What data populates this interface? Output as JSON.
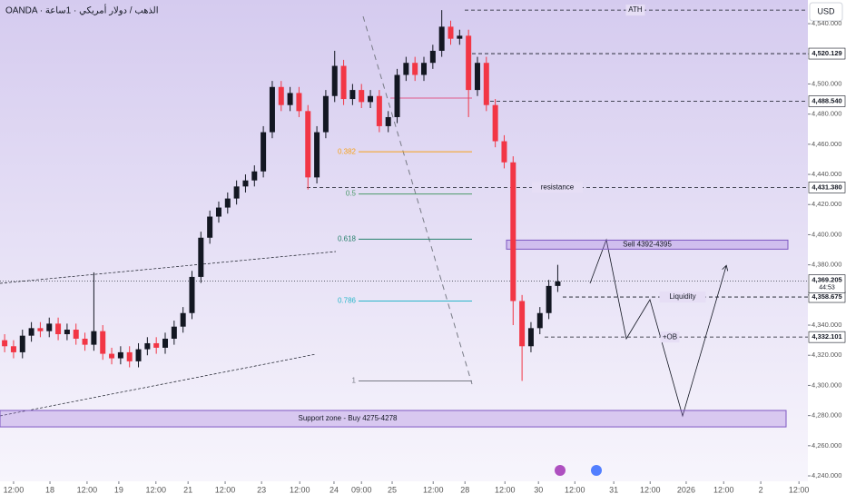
{
  "chart_data": {
    "type": "candlestick",
    "title": "OANDA · الذهب / دولار أمريكي · 1ساعة",
    "currency": "USD",
    "up_color": "#131722",
    "down_color": "#f23645",
    "x": [
      -0.25,
      0,
      0.25,
      0.5,
      0.75,
      1,
      1.25,
      1.5,
      1.75,
      2,
      2.25,
      2.5,
      2.75,
      3,
      3.25,
      3.5,
      3.75,
      4,
      4.25,
      4.5,
      4.75,
      5,
      5.25,
      5.5,
      5.75,
      6,
      6.25,
      6.5,
      6.75,
      7,
      7.25,
      7.5,
      7.75,
      8,
      8.25,
      8.5,
      8.75,
      9,
      9.25,
      9.5,
      9.75,
      10,
      10.25,
      10.5,
      10.75,
      11,
      11.25,
      11.5,
      11.75,
      12,
      12.25,
      12.5,
      12.75,
      13,
      13.25,
      13.5,
      13.75,
      14,
      14.25,
      14.5,
      14.75,
      15,
      15.25
    ],
    "open": [
      4330,
      4326,
      4322,
      4333,
      4338,
      4336,
      4341,
      4334,
      4337,
      4331,
      4327,
      4336,
      4321,
      4318,
      4322,
      4316,
      4324,
      4328,
      4325,
      4331,
      4339,
      4348,
      4372,
      4398,
      4412,
      4418,
      4424,
      4432,
      4436,
      4442,
      4468,
      4498,
      4486,
      4494,
      4482,
      4438,
      4468,
      4492,
      4512,
      4490,
      4496,
      4488,
      4492,
      4472,
      4478,
      4506,
      4514,
      4506,
      4514,
      4522,
      4538,
      4530,
      4532,
      4496,
      4514,
      4486,
      4462,
      4448,
      4356,
      4326,
      4338,
      4348,
      4366
    ],
    "high": [
      4334,
      4330,
      4337,
      4342,
      4342,
      4345,
      4345,
      4341,
      4341,
      4335,
      4375,
      4340,
      4325,
      4326,
      4326,
      4328,
      4332,
      4332,
      4335,
      4343,
      4352,
      4376,
      4402,
      4416,
      4422,
      4428,
      4436,
      4440,
      4446,
      4472,
      4502,
      4502,
      4498,
      4498,
      4486,
      4472,
      4496,
      4522,
      4516,
      4500,
      4500,
      4496,
      4496,
      4482,
      4510,
      4518,
      4518,
      4518,
      4526,
      4549,
      4542,
      4536,
      4536,
      4518,
      4518,
      4490,
      4466,
      4452,
      4360,
      4342,
      4352,
      4370,
      4380
    ],
    "low": [
      4322,
      4318,
      4318,
      4329,
      4332,
      4332,
      4330,
      4330,
      4327,
      4323,
      4323,
      4317,
      4314,
      4314,
      4312,
      4312,
      4320,
      4321,
      4321,
      4327,
      4335,
      4344,
      4368,
      4394,
      4408,
      4414,
      4420,
      4428,
      4432,
      4438,
      4464,
      4482,
      4482,
      4478,
      4430,
      4434,
      4464,
      4488,
      4486,
      4486,
      4484,
      4484,
      4468,
      4468,
      4474,
      4502,
      4502,
      4502,
      4510,
      4518,
      4526,
      4526,
      4478,
      4492,
      4482,
      4458,
      4444,
      4340,
      4303,
      4322,
      4334,
      4344,
      4362
    ],
    "close": [
      4326,
      4322,
      4333,
      4338,
      4336,
      4341,
      4334,
      4337,
      4331,
      4327,
      4336,
      4321,
      4318,
      4322,
      4316,
      4324,
      4328,
      4325,
      4331,
      4339,
      4348,
      4372,
      4398,
      4412,
      4418,
      4424,
      4432,
      4436,
      4442,
      4468,
      4498,
      4486,
      4494,
      4482,
      4438,
      4468,
      4492,
      4512,
      4490,
      4496,
      4488,
      4492,
      4472,
      4478,
      4506,
      4514,
      4506,
      4514,
      4522,
      4538,
      4530,
      4532,
      4496,
      4514,
      4486,
      4462,
      4448,
      4356,
      4326,
      4338,
      4348,
      4366,
      4369
    ],
    "xlim": [
      -0.38,
      22.26
    ],
    "xticks": [
      {
        "value": 0,
        "label": "12:00"
      },
      {
        "value": 1.02,
        "label": "18"
      },
      {
        "value": 2.06,
        "label": "12:00"
      },
      {
        "value": 2.95,
        "label": "19"
      },
      {
        "value": 3.99,
        "label": "12:00"
      },
      {
        "value": 4.89,
        "label": "21"
      },
      {
        "value": 5.93,
        "label": "12:00"
      },
      {
        "value": 6.95,
        "label": "23"
      },
      {
        "value": 8.02,
        "label": "12:00"
      },
      {
        "value": 8.98,
        "label": "24"
      },
      {
        "value": 9.75,
        "label": "09:00"
      },
      {
        "value": 10.61,
        "label": "25"
      },
      {
        "value": 11.76,
        "label": "12:00"
      },
      {
        "value": 12.65,
        "label": "28"
      },
      {
        "value": 13.77,
        "label": "12:00"
      },
      {
        "value": 14.71,
        "label": "30"
      },
      {
        "value": 15.73,
        "label": "12:00"
      },
      {
        "value": 16.82,
        "label": "31"
      },
      {
        "value": 17.84,
        "label": "12:00"
      },
      {
        "value": 18.85,
        "label": "2026"
      },
      {
        "value": 19.9,
        "label": "12:00"
      },
      {
        "value": 20.94,
        "label": "2"
      },
      {
        "value": 22.01,
        "label": "12:00"
      }
    ],
    "ylim": [
      4236.4,
      4555.7
    ],
    "yticks": [
      {
        "value": 4240,
        "label": "4,240.000"
      },
      {
        "value": 4260,
        "label": "4,260.000"
      },
      {
        "value": 4280,
        "label": "4,280.000"
      },
      {
        "value": 4300,
        "label": "4,300.000"
      },
      {
        "value": 4320,
        "label": "4,320.000"
      },
      {
        "value": 4340,
        "label": "4,340.000"
      },
      {
        "value": 4360,
        "label": "4,360.000"
      },
      {
        "value": 4380,
        "label": "4,380.000"
      },
      {
        "value": 4400,
        "label": "4,400.000"
      },
      {
        "value": 4420,
        "label": "4,420.000"
      },
      {
        "value": 4440,
        "label": "4,440.000"
      },
      {
        "value": 4460,
        "label": "4,460.000"
      },
      {
        "value": 4480,
        "label": "4,480.000"
      },
      {
        "value": 4500,
        "label": "4,500.000"
      },
      {
        "value": 4520,
        "label": "4,520.000"
      },
      {
        "value": 4540,
        "label": "4,540.000"
      }
    ],
    "price_lines": [
      {
        "value": 4520.129,
        "label": "4,520.129"
      },
      {
        "value": 4488.54,
        "label": "4,488.540"
      },
      {
        "value": 4431.38,
        "label": "4,431.380"
      },
      {
        "value": 4358.675,
        "label": "4,358.675"
      },
      {
        "value": 4332.101,
        "label": "4,332.101"
      }
    ],
    "current_price": {
      "value": 4369.205,
      "label": "4,369.205",
      "countdown": "44:53"
    },
    "fib_levels": [
      {
        "label": "0.382",
        "price": 4455,
        "color": "#f7a21b"
      },
      {
        "label": "0.5",
        "price": 4427,
        "color": "#4c9a6a"
      },
      {
        "label": "0.618",
        "price": 4397,
        "color": "#26806b"
      },
      {
        "label": "0.786",
        "price": 4356,
        "color": "#2ab7ca"
      },
      {
        "label": "1",
        "price": 4303,
        "color": "#787b86"
      }
    ],
    "level_labels": [
      {
        "text": "ATH",
        "price": 4549
      },
      {
        "text": "resistance",
        "price": 4431.38
      },
      {
        "text": "Liquidity",
        "price": 4358.675
      },
      {
        "text": "+OB",
        "price": 4332.101
      }
    ],
    "zones": [
      {
        "label": "Sell 4392-4395",
        "top": 4396.4,
        "bottom": 4390.4
      },
      {
        "label": "Support zone - Buy 4275-4278",
        "top": 4283.4,
        "bottom": 4272.5
      }
    ]
  }
}
